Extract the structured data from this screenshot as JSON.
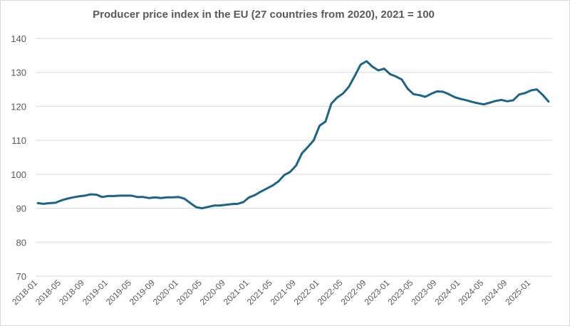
{
  "chart_data": {
    "type": "line",
    "title": "Producer price index in the EU (27 countries from 2020), 2021 = 100",
    "xlabel": "",
    "ylabel": "",
    "ylim": [
      70,
      140
    ],
    "yticks": [
      70,
      80,
      90,
      100,
      110,
      120,
      130,
      140
    ],
    "grid": true,
    "line_color": "#1f6384",
    "start": "2018-01",
    "xtick_labels": [
      "2018-01",
      "2018-05",
      "2018-09",
      "2019-01",
      "2019-05",
      "2019-09",
      "2020-01",
      "2020-05",
      "2020-09",
      "2021-01",
      "2021-05",
      "2021-09",
      "2022-01",
      "2022-05",
      "2022-09",
      "2023-01",
      "2023-05",
      "2023-09",
      "2024-01",
      "2024-05",
      "2024-09",
      "2025-01"
    ],
    "values": [
      91.5,
      91.3,
      91.5,
      91.6,
      92.3,
      92.8,
      93.2,
      93.5,
      93.7,
      94.1,
      94.0,
      93.3,
      93.6,
      93.6,
      93.7,
      93.7,
      93.7,
      93.3,
      93.3,
      93.0,
      93.2,
      93.0,
      93.2,
      93.2,
      93.3,
      92.8,
      91.5,
      90.3,
      90.0,
      90.4,
      90.8,
      90.8,
      91.0,
      91.2,
      91.3,
      91.8,
      93.2,
      93.9,
      94.9,
      95.8,
      96.7,
      97.9,
      99.8,
      100.7,
      102.6,
      106.2,
      108.0,
      110.0,
      114.3,
      115.5,
      120.8,
      122.6,
      123.8,
      125.8,
      129.0,
      132.3,
      133.3,
      131.7,
      130.6,
      131.1,
      129.5,
      128.8,
      127.9,
      125.2,
      123.6,
      123.3,
      122.8,
      123.7,
      124.4,
      124.3,
      123.6,
      122.7,
      122.2,
      121.8,
      121.3,
      120.9,
      120.6,
      121.1,
      121.6,
      121.9,
      121.5,
      121.8,
      123.5,
      123.9,
      124.7,
      125.0,
      123.4,
      121.4
    ]
  }
}
